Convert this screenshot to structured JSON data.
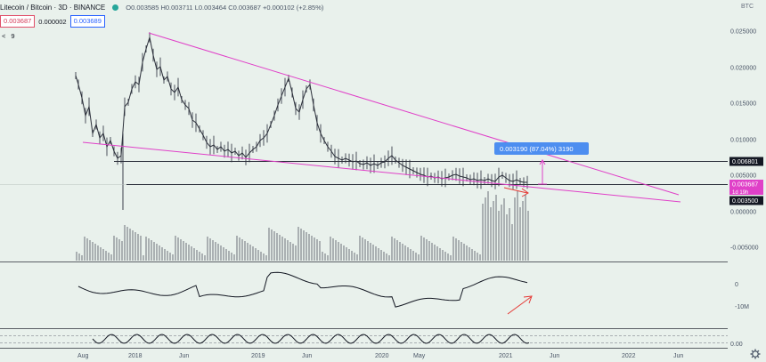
{
  "header": {
    "title": "Litecoin / Bitcoin · 3D · BINANCE",
    "ohlc": "O0.003585  H0.003711  L0.003464  C0.003687  +0.000102 (+2.85%)",
    "sell_price": "0.003687",
    "spread": "0.000002",
    "buy_price": "0.003689",
    "collapse_glyph": "<",
    "indicator_count": "9",
    "currency": "BTC"
  },
  "price_axis": {
    "ticks": [
      "0.025000",
      "0.020000",
      "0.015000",
      "0.010000",
      "0.005000",
      "0.000000",
      "-0.005000"
    ],
    "badges": {
      "resistance": "0.006801",
      "current": "0.003687",
      "countdown": "1d 19h",
      "support": "0.003500"
    }
  },
  "annotation": {
    "measure_label": "0.003190 (87.04%) 3190"
  },
  "indicator_axis": {
    "osc1_ticks": [
      "0",
      "-10M"
    ],
    "osc2_ticks": [
      "0.00"
    ]
  },
  "time_axis": {
    "labels": [
      "Aug",
      "2018",
      "Jun",
      "2019",
      "Jun",
      "2020",
      "May",
      "2021",
      "Jun",
      "2022",
      "Jun"
    ]
  },
  "colors": {
    "background": "#e9f1ec",
    "trendline": "#e040c8",
    "measure_box": "#4d8ef0",
    "current_price": "#e040c8",
    "level_badge": "#131722",
    "arrow": "#e53935"
  },
  "icons": {
    "status": "green-dot-icon",
    "settings": "gear-icon"
  }
}
